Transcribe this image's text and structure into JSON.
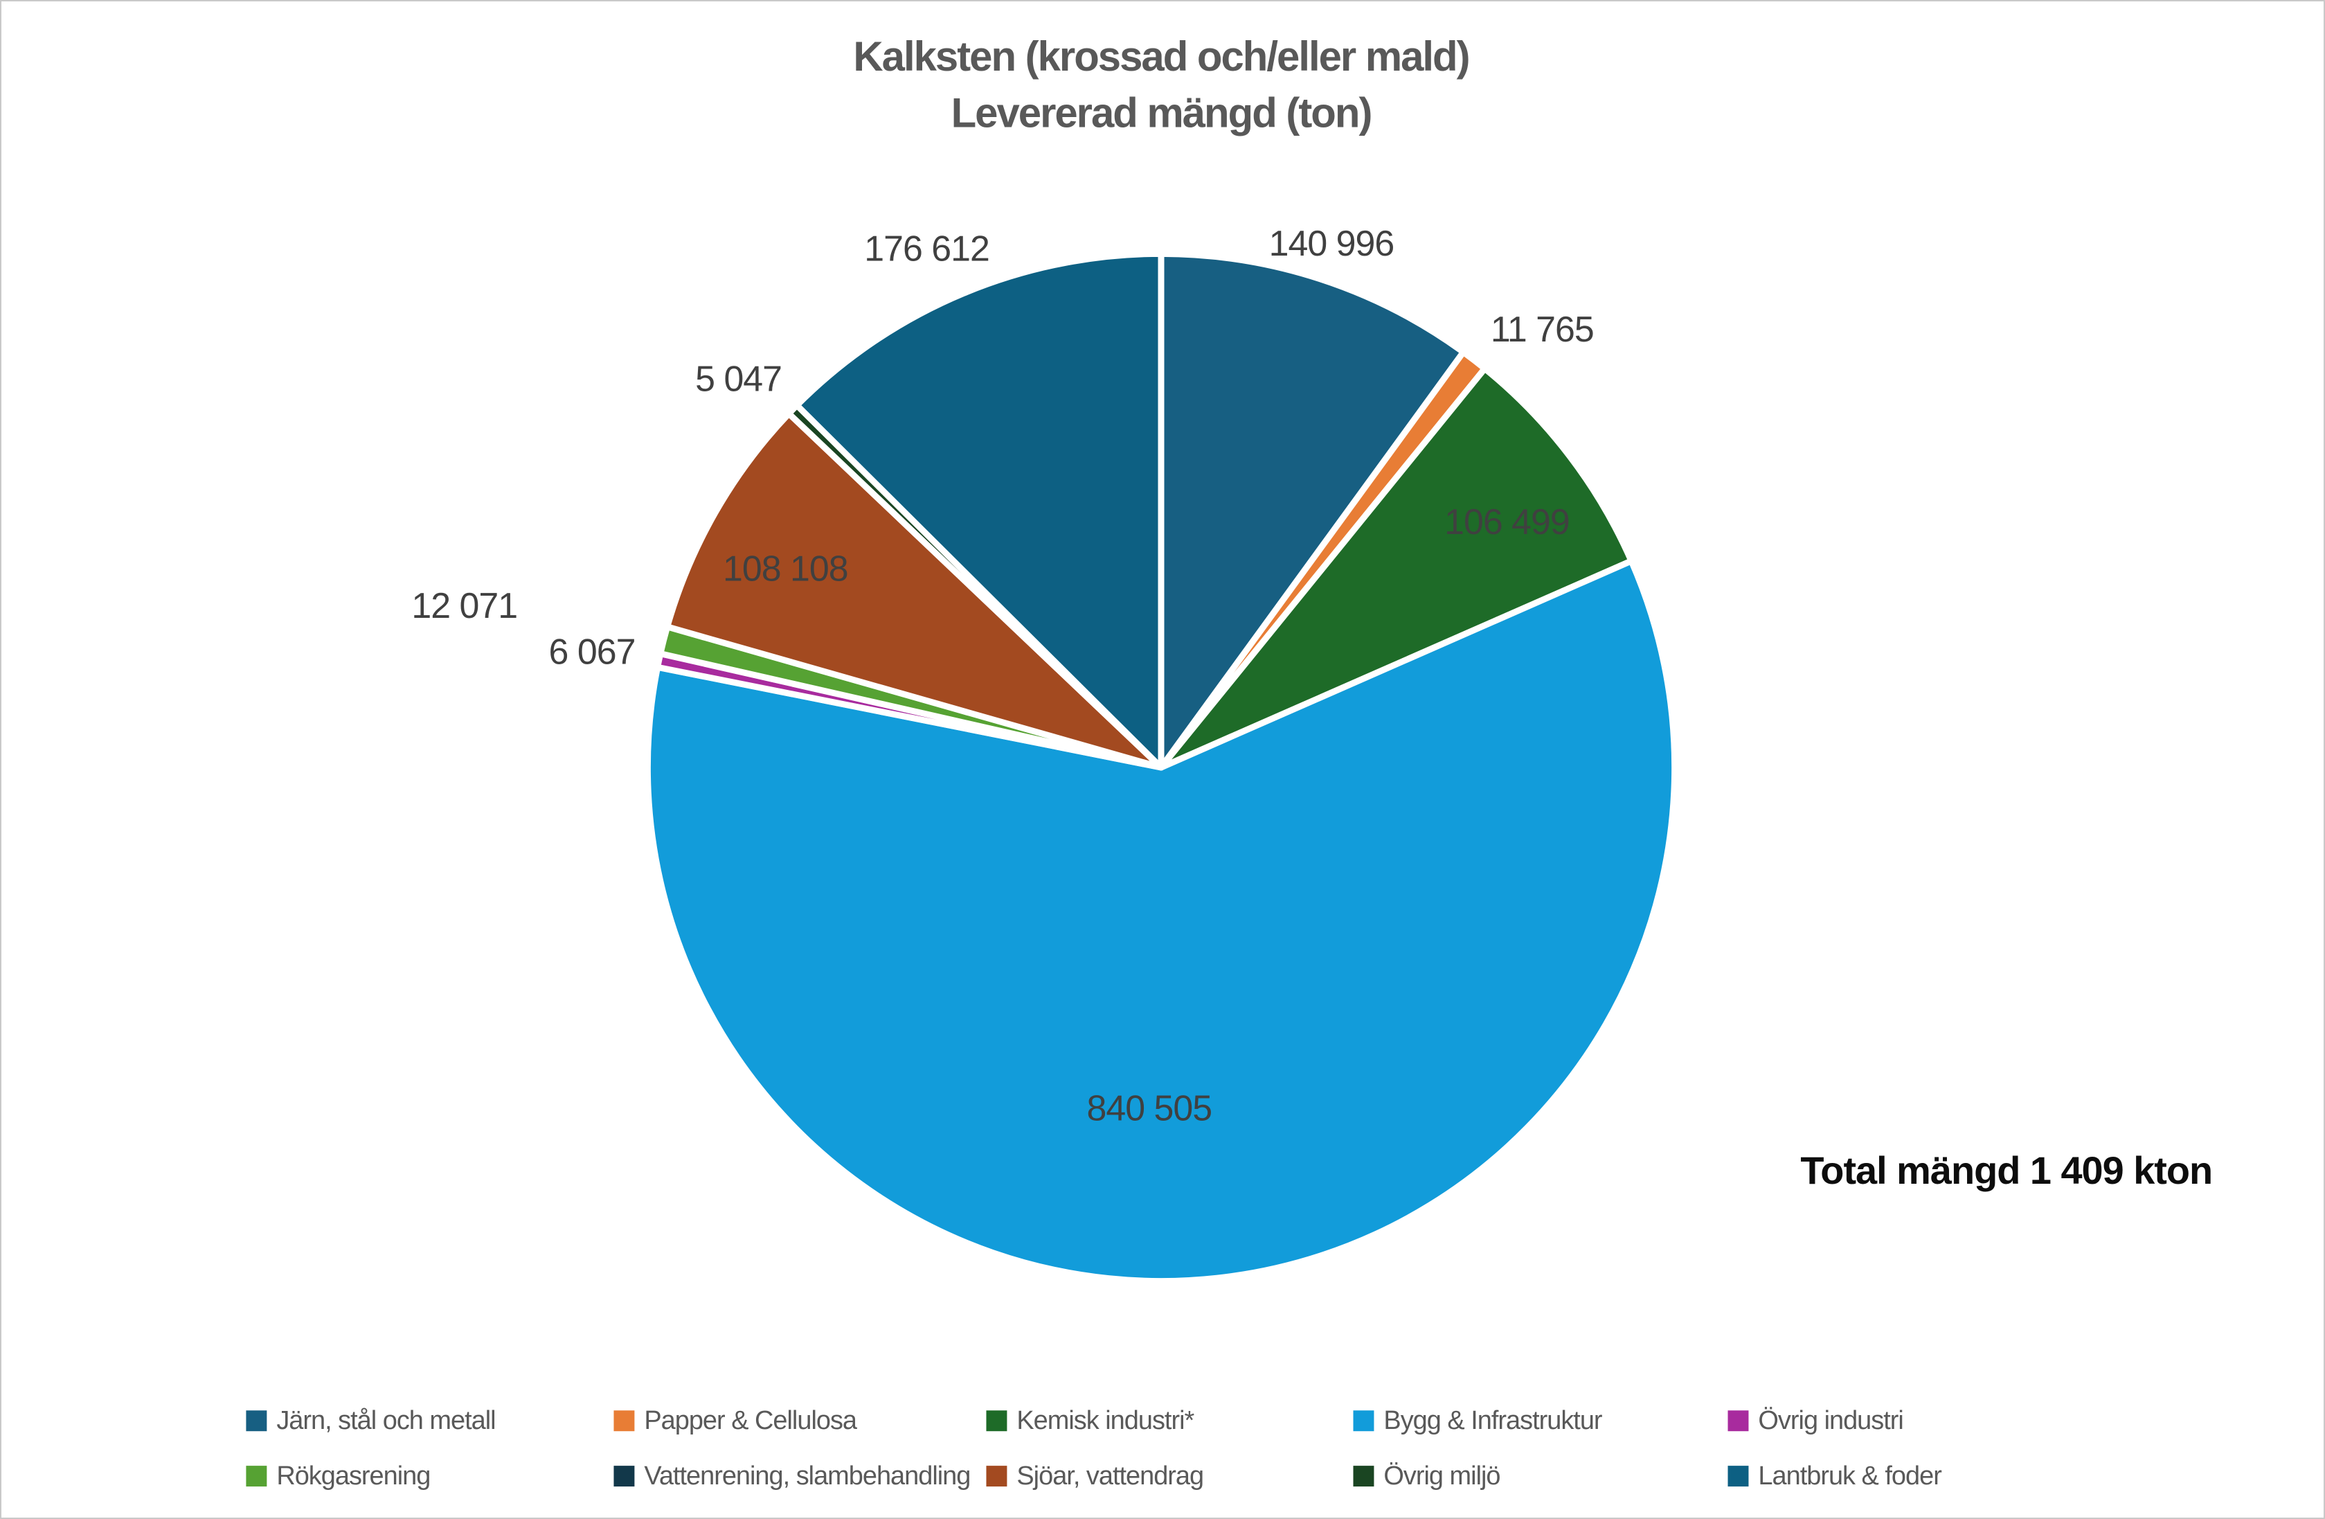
{
  "chart_data": {
    "type": "pie",
    "title": "Kalksten (krossad och/eller mald)",
    "subtitle": "Levererad mängd (ton)",
    "annotation": "Total mängd 1 409 kton",
    "total_kton": "1 409",
    "unit": "ton",
    "direction": "clockwise",
    "start_angle_deg": 0,
    "slices": [
      {
        "label": "Järn, stål och metall",
        "value": 140996,
        "display": "140 996",
        "color": "#175f82",
        "label_inside": false,
        "label_angle": 18.0,
        "label_radius": 1.073
      },
      {
        "label": "Papper & Cellulosa",
        "value": 11765,
        "display": "11 765",
        "color": "#e87d35",
        "label_inside": false,
        "label_angle": 41.0,
        "label_radius": 1.131
      },
      {
        "label": "Kemisk industri*",
        "value": 106499,
        "display": "106 499",
        "color": "#1e6b28",
        "label_inside": true,
        "label_angle": 54.6,
        "label_radius": 0.826
      },
      {
        "label": "Bygg & Infrastruktur",
        "value": 840505,
        "display": "840 505",
        "color": "#129cda",
        "label_inside": true,
        "label_angle": 182.0,
        "label_radius": 0.663
      },
      {
        "label": "Övrig industri",
        "value": 6067,
        "display": "6 067",
        "color": "#a82b9e",
        "label_inside": false,
        "label_angle": 281.5,
        "label_radius": 1.131
      },
      {
        "label": "Rökgasrening",
        "value": 12071,
        "display": "12 071",
        "color": "#56a233",
        "label_inside": false,
        "label_angle": 283.1,
        "label_radius": 1.393
      },
      {
        "label": "Sjöar, vattendrag",
        "value": 108108,
        "display": "108 108",
        "color": "#a34a20",
        "label_inside": true,
        "label_angle": 297.9,
        "label_radius": 0.828
      },
      {
        "label": "Övrig miljö",
        "value": 5047,
        "display": "5 047",
        "color": "#1a4522",
        "label_inside": false,
        "label_angle": 312.6,
        "label_radius": 1.118
      },
      {
        "label": "Lantbruk & foder",
        "value": 176612,
        "display": "176 612",
        "color": "#0d6083",
        "label_inside": false,
        "label_angle": 335.7,
        "label_radius": 1.109
      }
    ],
    "legend": {
      "position": "bottom",
      "rows": 2,
      "items": [
        {
          "label": "Järn, stål och metall",
          "color": "#175f82"
        },
        {
          "label": "Papper & Cellulosa",
          "color": "#e87d35"
        },
        {
          "label": "Kemisk industri*",
          "color": "#1e6b28"
        },
        {
          "label": "Bygg & Infrastruktur",
          "color": "#129cda"
        },
        {
          "label": "Övrig industri",
          "color": "#a82b9e"
        },
        {
          "label": "Rökgasrening",
          "color": "#56a233"
        },
        {
          "label": "Vattenrening, slambehandling",
          "color": "#12384a"
        },
        {
          "label": "Sjöar, vattendrag",
          "color": "#a34a20"
        },
        {
          "label": "Övrig miljö",
          "color": "#1a4522"
        },
        {
          "label": "Lantbruk & foder",
          "color": "#0d6083"
        }
      ]
    }
  }
}
